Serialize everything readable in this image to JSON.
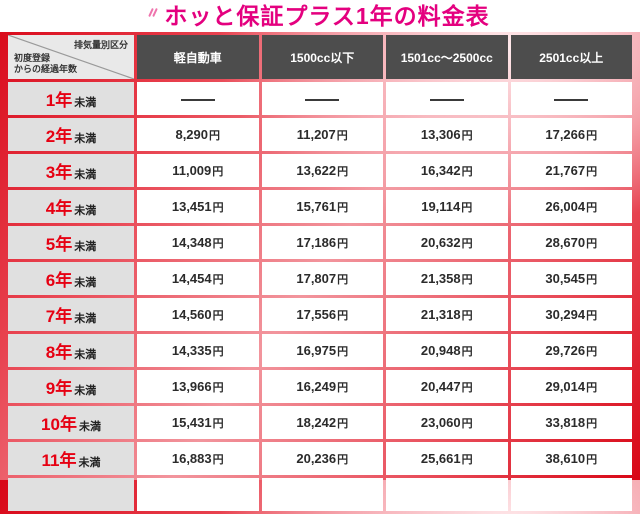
{
  "header": {
    "title": "ホッと保証プラス1年の料金表"
  },
  "chart_data": {
    "type": "table",
    "title": "ホッと保証プラス1年の料金表",
    "corner_header_top": "排気量別区分",
    "corner_header_bottom": "初度登録\nからの経過年数",
    "columns": [
      "軽自動車",
      "1500cc以下",
      "1501cc〜2500cc",
      "2501cc以上"
    ],
    "row_labels": [
      "1年未満",
      "2年未満",
      "3年未満",
      "4年未満",
      "5年未満",
      "6年未満",
      "7年未満",
      "8年未満",
      "9年未満",
      "10年未満",
      "11年未満"
    ],
    "rows": [
      [
        "―",
        "―",
        "―",
        "―"
      ],
      [
        "8,290円",
        "11,207円",
        "13,306円",
        "17,266円"
      ],
      [
        "11,009円",
        "13,622円",
        "16,342円",
        "21,767円"
      ],
      [
        "13,451円",
        "15,761円",
        "19,114円",
        "26,004円"
      ],
      [
        "14,348円",
        "17,186円",
        "20,632円",
        "28,670円"
      ],
      [
        "14,454円",
        "17,807円",
        "21,358円",
        "30,545円"
      ],
      [
        "14,560円",
        "17,556円",
        "21,318円",
        "30,294円"
      ],
      [
        "14,335円",
        "16,975円",
        "20,948円",
        "29,726円"
      ],
      [
        "13,966円",
        "16,249円",
        "20,447円",
        "29,014円"
      ],
      [
        "15,431円",
        "18,242円",
        "23,060円",
        "33,818円"
      ],
      [
        "16,883円",
        "20,236円",
        "25,661円",
        "38,610円"
      ]
    ],
    "currency_unit": "円",
    "empty_marker": "―"
  },
  "colors": {
    "title_magenta": "#e4007f",
    "background_red": "#d80617",
    "column_header_bg": "#4d4d4d",
    "row_header_bg": "#e0e0e0",
    "year_red": "#e60012"
  }
}
